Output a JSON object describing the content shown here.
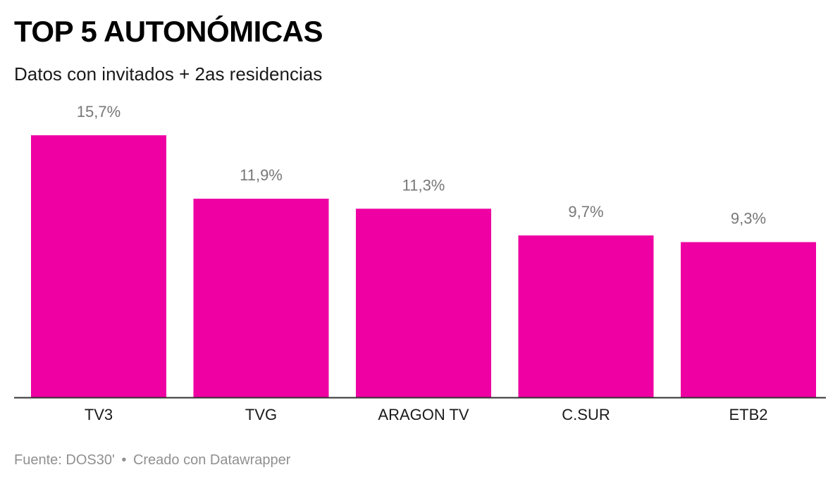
{
  "header": {
    "title": "TOP 5 AUTONÓMICAS",
    "subtitle": "Datos con invitados + 2as residencias"
  },
  "footer": {
    "source": "Fuente: DOS30'",
    "separator": "•",
    "credit": "Creado con Datawrapper"
  },
  "colors": {
    "bar": "#ee00a2",
    "value_label": "#777777",
    "axis": "#333333",
    "category_label": "#1a1a1a"
  },
  "chart_data": {
    "type": "bar",
    "categories": [
      "TV3",
      "TVG",
      "ARAGON TV",
      "C.SUR",
      "ETB2"
    ],
    "values": [
      15.7,
      11.9,
      11.3,
      9.7,
      9.3
    ],
    "value_labels": [
      "15,7%",
      "11,9%",
      "11,3%",
      "9,7%",
      "9,3%"
    ],
    "title": "TOP 5 AUTONÓMICAS",
    "subtitle": "Datos con invitados + 2as residencias",
    "xlabel": "",
    "ylabel": "",
    "ylim": [
      0,
      15.7
    ],
    "grid": false,
    "legend": "none"
  }
}
